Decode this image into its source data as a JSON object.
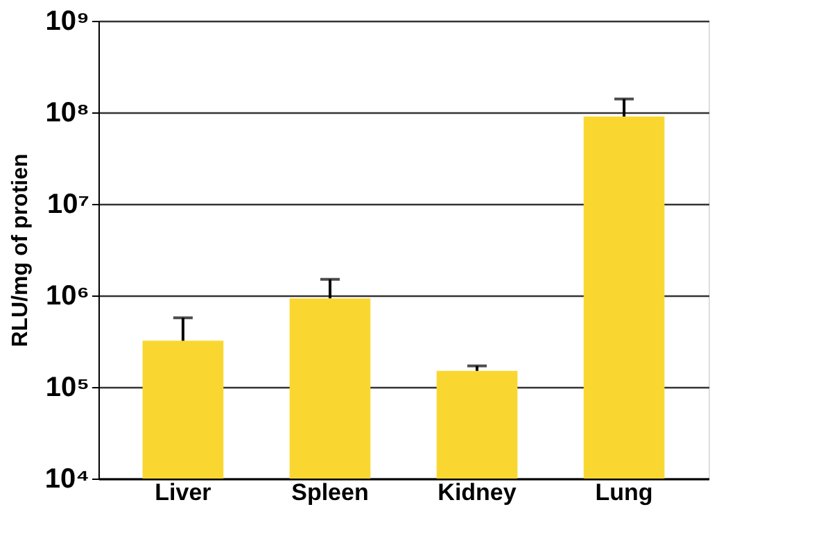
{
  "chart_data": {
    "type": "bar",
    "ylabel": "RLU/mg of protien",
    "categories": [
      "Liver",
      "Spleen",
      "Kidney",
      "Lung"
    ],
    "values": [
      320000,
      930000,
      150000,
      90000000
    ],
    "errors": [
      [
        320000,
        570000
      ],
      [
        930000,
        1500000
      ],
      [
        150000,
        170000
      ],
      [
        90000000,
        140000000
      ]
    ],
    "color": "#f9d730",
    "log": true,
    "ylim": [
      10000,
      1000000000
    ],
    "yticks": [
      {
        "value": 10000,
        "label": "10⁴"
      },
      {
        "value": 100000,
        "label": "10⁵"
      },
      {
        "value": 1000000,
        "label": "10⁶"
      },
      {
        "value": 10000000,
        "label": "10⁷"
      },
      {
        "value": 100000000,
        "label": "10⁸"
      },
      {
        "value": 1000000000,
        "label": "10⁹"
      }
    ],
    "grid": "y"
  }
}
